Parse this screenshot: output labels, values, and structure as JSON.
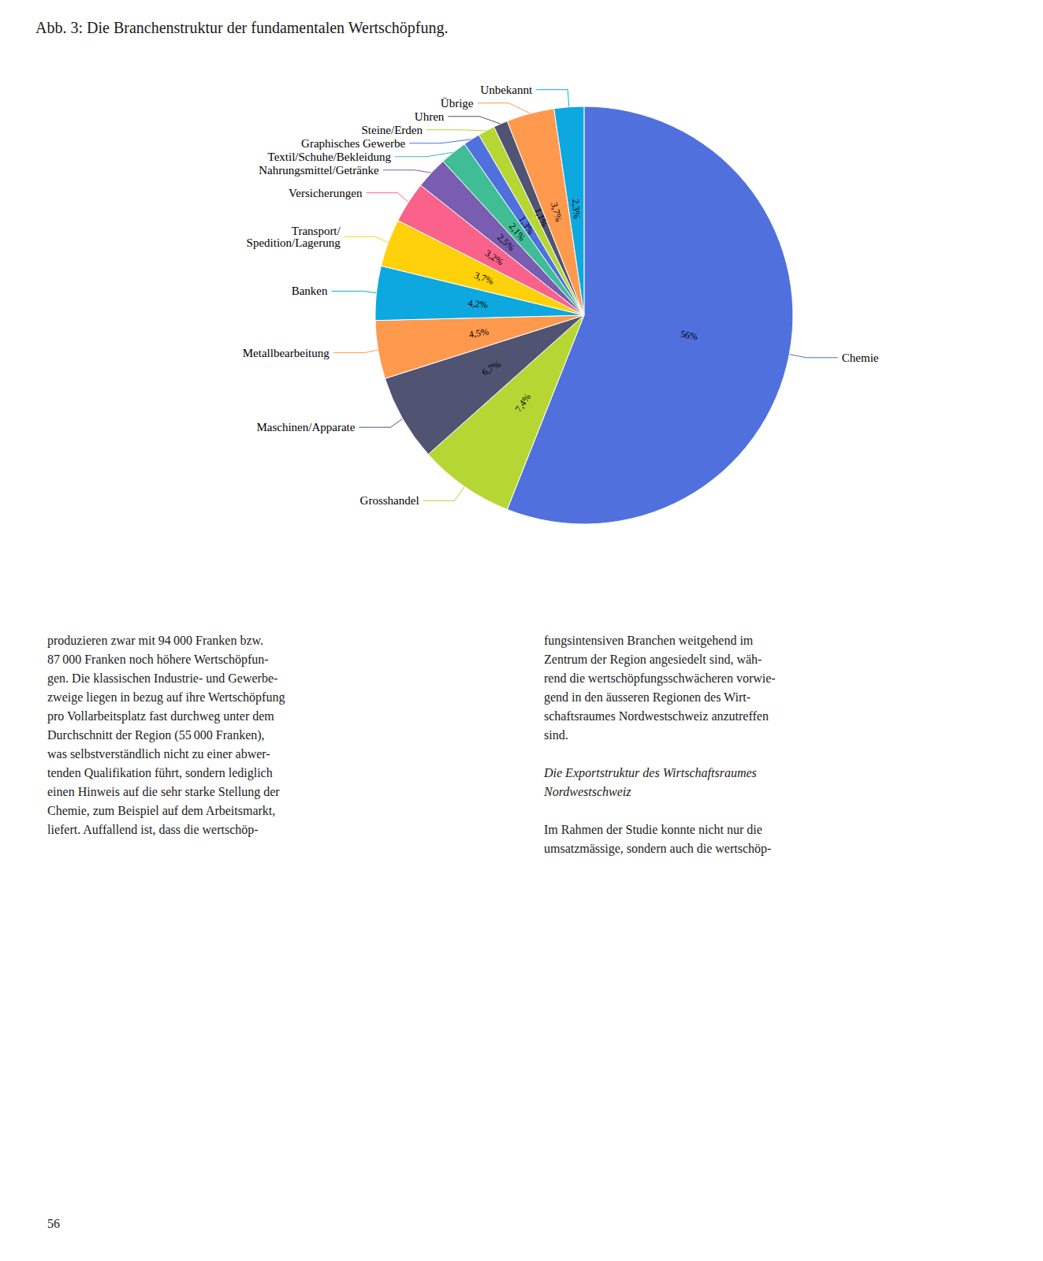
{
  "chart_data": {
    "type": "pie",
    "title": "Abb. 3: Die Branchenstruktur der fundamentalen Wertschöpfung.",
    "categories": [
      "Chemie",
      "Grosshandel",
      "Maschinen/Apparate",
      "Metallbearbeitung",
      "Banken",
      "Transport/\nSpedition/Lagerung",
      "Versicherungen",
      "Nahrungsmittel/Getränke",
      "Textil/Schuhe/Bekleidung",
      "Graphisches Gewerbe",
      "Steine/Erden",
      "Uhren",
      "Übrige",
      "Unbekannt"
    ],
    "values": [
      56.0,
      7.4,
      6.7,
      4.5,
      4.2,
      3.7,
      3.2,
      2.5,
      2.1,
      1.3,
      1.3,
      1.1,
      3.7,
      2.3
    ],
    "value_labels": [
      "56%",
      "7,4%",
      "6,7%",
      "4,5%",
      "4,2%",
      "3,7%",
      "3,2%",
      "2,5%",
      "2,1%",
      "1,3%",
      "1,3%",
      "1,1%",
      "3,7%",
      "2,3%"
    ],
    "data_labels": true,
    "annotations": [
      "produzieren zwar mit 94 000 Franken bzw.\n87 000 Franken noch höhere Wertschöpfun-\ngen. Die klassischen Industrie- und Gewerbe-\nzweige liegen in bezug auf ihre Wertschöpfung\npro Vollarbeitsplatz fast durchweg unter dem\nDurchschnitt der Region (55 000 Franken),\nwas selbstverständlich nicht zu einer abwer-\ntenden Qualifikation führt, sondern lediglich\neinen Hinweis auf die sehr starke Stellung der\nChemie, zum Beispiel auf dem Arbeitsmarkt,\nliefert. Auffallend ist, dass die wertschöp-",
      "fungsintensiven Branchen weitgehend im\nZentrum der Region angesiedelt sind, wäh-\nrend die wertschöpfungsschwächeren vorwie-\ngend in den äusseren Regionen des Wirt-\nschaftsraumes Nordwestschweiz anzutreffen\nsind.",
      "Die Exportstruktur des Wirtschaftsraumes\nNordwestschweiz",
      "Im Rahmen der Studie konnte nicht nur die\numsatzmässige, sondern auch die wertschöp-",
      "56"
    ]
  }
}
